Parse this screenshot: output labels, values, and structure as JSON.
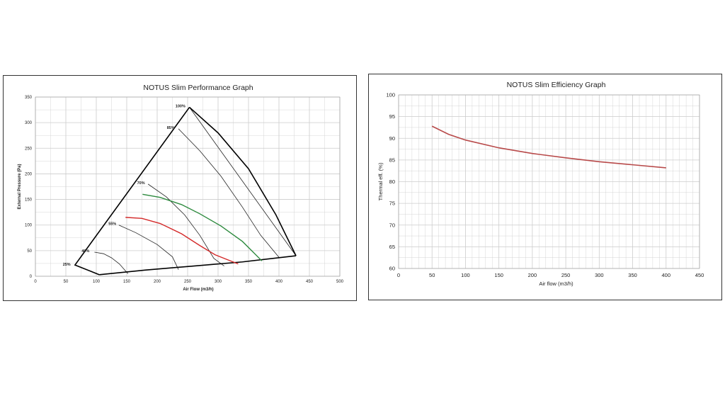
{
  "colors": {
    "grid": "#cccccc",
    "red": "#d42a2a",
    "green": "#2d8a3e",
    "eff_line": "#b84a4a"
  },
  "chart_data": [
    {
      "type": "line",
      "title": "NOTUS Slim Performance Graph",
      "xlabel": "Air Flow (m3/h)",
      "ylabel": "External Pressure (Pa)",
      "xlim": [
        0,
        500
      ],
      "ylim": [
        0,
        350
      ],
      "x_ticks": [
        0,
        50,
        100,
        150,
        200,
        250,
        300,
        350,
        400,
        450,
        500
      ],
      "y_ticks": [
        0,
        50,
        100,
        150,
        200,
        250,
        300,
        350
      ],
      "envelope": [
        [
          105,
          3
        ],
        [
          65,
          22
        ],
        [
          253,
          330
        ],
        [
          428,
          40
        ],
        [
          105,
          3
        ]
      ],
      "speed_curves": [
        {
          "name": "25%",
          "points": [
            [
              105,
              3
            ],
            [
              65,
              22
            ]
          ]
        },
        {
          "name": "40%",
          "points": [
            [
              97,
              47
            ],
            [
              112,
              44
            ],
            [
              125,
              36
            ],
            [
              138,
              24
            ],
            [
              152,
              5
            ]
          ]
        },
        {
          "name": "55%",
          "points": [
            [
              137,
              100
            ],
            [
              165,
              85
            ],
            [
              200,
              62
            ],
            [
              225,
              38
            ],
            [
              235,
              13
            ]
          ]
        },
        {
          "name": "70%",
          "points": [
            [
              185,
              180
            ],
            [
              215,
              155
            ],
            [
              245,
              120
            ],
            [
              270,
              80
            ],
            [
              293,
              35
            ],
            [
              310,
              20
            ]
          ]
        },
        {
          "name": "85%",
          "points": [
            [
              235,
              288
            ],
            [
              270,
              245
            ],
            [
              305,
              195
            ],
            [
              340,
              135
            ],
            [
              370,
              80
            ],
            [
              400,
              37
            ]
          ]
        },
        {
          "name": "100%",
          "points": [
            [
              253,
              330
            ],
            [
              428,
              40
            ]
          ]
        }
      ],
      "highlight_curves": [
        {
          "color": "red",
          "points": [
            [
              148,
              115
            ],
            [
              175,
              113
            ],
            [
              205,
              103
            ],
            [
              240,
              83
            ],
            [
              270,
              60
            ],
            [
              295,
              42
            ],
            [
              333,
              24
            ]
          ]
        },
        {
          "color": "green",
          "points": [
            [
              176,
              160
            ],
            [
              205,
              154
            ],
            [
              240,
              140
            ],
            [
              270,
              122
            ],
            [
              305,
              98
            ],
            [
              340,
              68
            ],
            [
              372,
              30
            ]
          ]
        }
      ],
      "labels": [
        {
          "text": "100%",
          "x": 230,
          "y": 330
        },
        {
          "text": "85%",
          "x": 216,
          "y": 288
        },
        {
          "text": "70%",
          "x": 167,
          "y": 180
        },
        {
          "text": "55%",
          "x": 120,
          "y": 100
        },
        {
          "text": "40%",
          "x": 76,
          "y": 47
        },
        {
          "text": "25%",
          "x": 45,
          "y": 21
        }
      ]
    },
    {
      "type": "line",
      "title": "NOTUS Slim Efficiency Graph",
      "xlabel": "Air flow (m3/h)",
      "ylabel": "Thermal eff. (%)",
      "xlim": [
        0,
        450
      ],
      "ylim": [
        60,
        100
      ],
      "x_ticks": [
        0,
        50,
        100,
        150,
        200,
        250,
        300,
        350,
        400,
        450
      ],
      "y_ticks": [
        60,
        65,
        70,
        75,
        80,
        85,
        90,
        95,
        100
      ],
      "series": [
        {
          "name": "Thermal efficiency",
          "x": [
            50,
            75,
            100,
            150,
            200,
            250,
            300,
            350,
            400
          ],
          "y": [
            92.8,
            90.9,
            89.6,
            87.8,
            86.5,
            85.5,
            84.6,
            83.9,
            83.2
          ]
        }
      ]
    }
  ]
}
